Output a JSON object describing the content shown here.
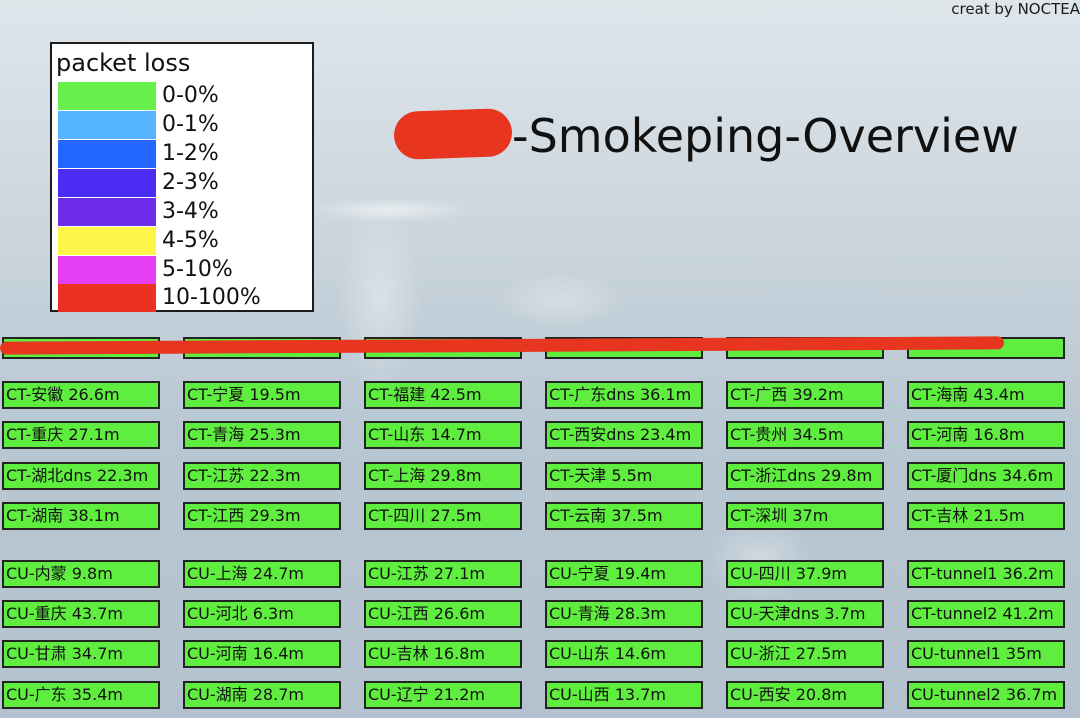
{
  "credit": "creat by NOCTEA",
  "title": "-Smokeping-Overview",
  "legend": {
    "title": "packet loss",
    "items": [
      {
        "label": "0-0%",
        "color": "#66ee4a"
      },
      {
        "label": "0-1%",
        "color": "#55b4ff"
      },
      {
        "label": "1-2%",
        "color": "#2266ff"
      },
      {
        "label": "2-3%",
        "color": "#4b2cf3"
      },
      {
        "label": "3-4%",
        "color": "#6f2bea"
      },
      {
        "label": "4-5%",
        "color": "#fff44a"
      },
      {
        "label": "5-10%",
        "color": "#e63ef2"
      },
      {
        "label": "10-100%",
        "color": "#ec3122"
      }
    ]
  },
  "tile_color": "#5fed3f",
  "redaction_color": "#e8351f",
  "rows": [
    [
      "",
      "",
      "",
      "",
      "",
      ""
    ],
    [
      "CT-安徽 26.6m",
      "CT-宁夏 19.5m",
      "CT-福建 42.5m",
      "CT-广东dns 36.1m",
      "CT-广西 39.2m",
      "CT-海南 43.4m"
    ],
    [
      "CT-重庆 27.1m",
      "CT-青海 25.3m",
      "CT-山东 14.7m",
      "CT-西安dns 23.4m",
      "CT-贵州 34.5m",
      "CT-河南 16.8m"
    ],
    [
      "CT-湖北dns 22.3m",
      "CT-江苏 22.3m",
      "CT-上海 29.8m",
      "CT-天津 5.5m",
      "CT-浙江dns 29.8m",
      "CT-厦门dns 34.6m"
    ],
    [
      "CT-湖南 38.1m",
      "CT-江西 29.3m",
      "CT-四川 27.5m",
      "CT-云南 37.5m",
      "CT-深圳 37m",
      "CT-吉林 21.5m"
    ],
    [
      "CU-内蒙 9.8m",
      "CU-上海 24.7m",
      "CU-江苏 27.1m",
      "CU-宁夏 19.4m",
      "CU-四川 37.9m",
      "CT-tunnel1 36.2m"
    ],
    [
      "CU-重庆 43.7m",
      "CU-河北 6.3m",
      "CU-江西 26.6m",
      "CU-青海 28.3m",
      "CU-天津dns 3.7m",
      "CT-tunnel2 41.2m"
    ],
    [
      "CU-甘肃 34.7m",
      "CU-河南 16.4m",
      "CU-吉林 16.8m",
      "CU-山东 14.6m",
      "CU-浙江 27.5m",
      "CU-tunnel1 35m"
    ],
    [
      "CU-广东 35.4m",
      "CU-湖南 28.7m",
      "CU-辽宁 21.2m",
      "CU-山西 13.7m",
      "CU-西安 20.8m",
      "CU-tunnel2 36.7m"
    ]
  ]
}
